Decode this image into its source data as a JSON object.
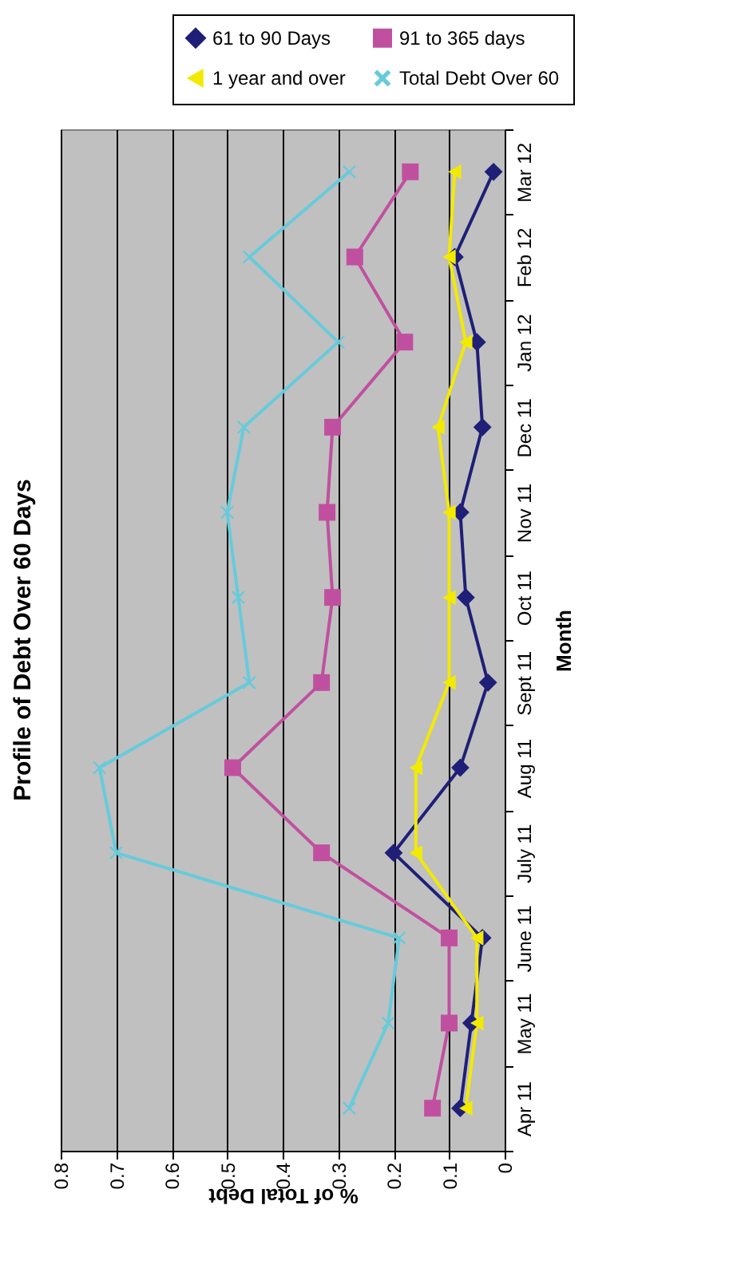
{
  "chart_data": {
    "type": "line",
    "orientation": "horizontal",
    "title": "Profile of Debt Over 60 Days",
    "xlabel": "% of Total Debt",
    "ylabel": "Month",
    "categories": [
      "Mar 12",
      "Feb 12",
      "Jan 12",
      "Dec 11",
      "Nov 11",
      "Oct 11",
      "Sept 11",
      "Aug 11",
      "July 11",
      "June 11",
      "May 11",
      "Apr 11"
    ],
    "series": [
      {
        "name": "61 to 90 Days",
        "color": "#1f1f78",
        "marker": "diamond",
        "values": [
          0.02,
          0.09,
          0.05,
          0.04,
          0.08,
          0.07,
          0.03,
          0.08,
          0.2,
          0.04,
          0.06,
          0.08
        ]
      },
      {
        "name": "91 to 365 days",
        "color": "#c0509f",
        "marker": "square",
        "values": [
          0.17,
          0.27,
          0.18,
          0.31,
          0.32,
          0.31,
          0.33,
          0.49,
          0.33,
          0.1,
          0.1,
          0.13
        ]
      },
      {
        "name": "1 year and over",
        "color": "#f2ea00",
        "marker": "triangle",
        "values": [
          0.09,
          0.1,
          0.07,
          0.12,
          0.1,
          0.1,
          0.1,
          0.16,
          0.16,
          0.05,
          0.05,
          0.07
        ]
      },
      {
        "name": "Total Debt Over 60",
        "color": "#66cbdb",
        "marker": "cross",
        "values": [
          0.28,
          0.46,
          0.3,
          0.47,
          0.5,
          0.48,
          0.46,
          0.73,
          0.7,
          0.19,
          0.21,
          0.28
        ]
      }
    ],
    "xlim": [
      0.8,
      0
    ],
    "xticks": [
      0.8,
      0.7,
      0.6,
      0.5,
      0.4,
      0.3,
      0.2,
      0.1,
      0
    ],
    "grid": "x",
    "legend": "top right"
  }
}
